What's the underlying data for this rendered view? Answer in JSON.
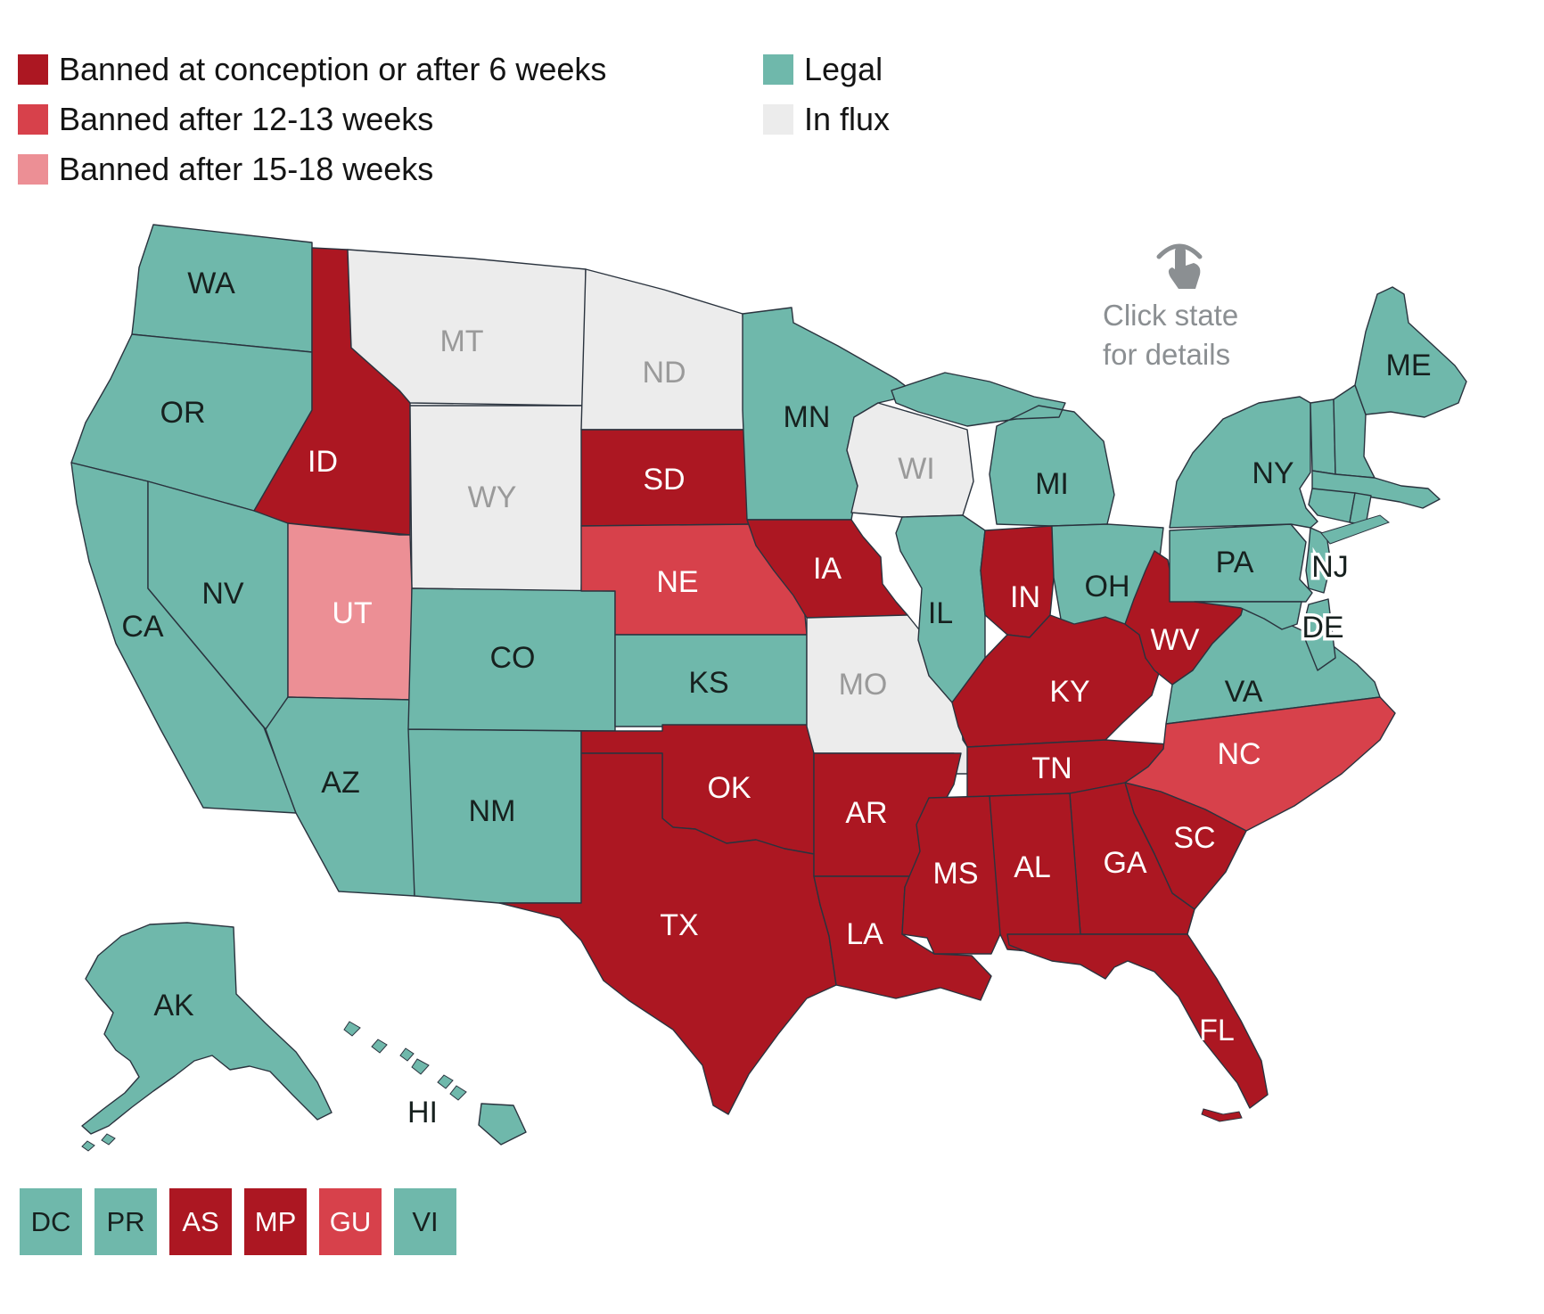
{
  "legend": {
    "items": [
      {
        "label": "Banned at conception or after 6 weeks",
        "status": "banned_6w",
        "column": "left"
      },
      {
        "label": "Banned after 12-13 weeks",
        "status": "banned_12_13w",
        "column": "left"
      },
      {
        "label": "Banned after 15-18 weeks",
        "status": "banned_15_18w",
        "column": "left"
      },
      {
        "label": "Legal",
        "status": "legal",
        "column": "right"
      },
      {
        "label": "In flux",
        "status": "influx",
        "column": "right"
      }
    ]
  },
  "colors": {
    "banned_6w": "#AC1722",
    "banned_12_13w": "#D7414B",
    "banned_15_18w": "#EC8F95",
    "legal": "#6FB8AB",
    "influx": "#ECECEC"
  },
  "label_colors": {
    "legal": "#17211F",
    "influx": "#9A9A9A",
    "banned_6w": "#FFFFFF",
    "banned_12_13w": "#FFFFFF",
    "banned_15_18w": "#FFFFFF"
  },
  "instruction": {
    "line1": "Click state",
    "line2": "for details"
  },
  "map": {
    "states": [
      {
        "abbr": "WA",
        "status": "legal",
        "labeled": true
      },
      {
        "abbr": "OR",
        "status": "legal",
        "labeled": true
      },
      {
        "abbr": "CA",
        "status": "legal",
        "labeled": true
      },
      {
        "abbr": "NV",
        "status": "legal",
        "labeled": true
      },
      {
        "abbr": "ID",
        "status": "banned_6w",
        "labeled": true
      },
      {
        "abbr": "MT",
        "status": "influx",
        "labeled": true
      },
      {
        "abbr": "WY",
        "status": "influx",
        "labeled": true
      },
      {
        "abbr": "UT",
        "status": "banned_15_18w",
        "labeled": true
      },
      {
        "abbr": "AZ",
        "status": "legal",
        "labeled": true
      },
      {
        "abbr": "NM",
        "status": "legal",
        "labeled": true
      },
      {
        "abbr": "CO",
        "status": "legal",
        "labeled": true
      },
      {
        "abbr": "ND",
        "status": "influx",
        "labeled": true
      },
      {
        "abbr": "SD",
        "status": "banned_6w",
        "labeled": true
      },
      {
        "abbr": "NE",
        "status": "banned_12_13w",
        "labeled": true
      },
      {
        "abbr": "KS",
        "status": "legal",
        "labeled": true
      },
      {
        "abbr": "OK",
        "status": "banned_6w",
        "labeled": true
      },
      {
        "abbr": "TX",
        "status": "banned_6w",
        "labeled": true
      },
      {
        "abbr": "MN",
        "status": "legal",
        "labeled": true
      },
      {
        "abbr": "IA",
        "status": "banned_6w",
        "labeled": true
      },
      {
        "abbr": "MO",
        "status": "influx",
        "labeled": true
      },
      {
        "abbr": "AR",
        "status": "banned_6w",
        "labeled": true
      },
      {
        "abbr": "LA",
        "status": "banned_6w",
        "labeled": true
      },
      {
        "abbr": "WI",
        "status": "influx",
        "labeled": true
      },
      {
        "abbr": "IL",
        "status": "legal",
        "labeled": true
      },
      {
        "abbr": "MI",
        "status": "legal",
        "labeled": true
      },
      {
        "abbr": "IN",
        "status": "banned_6w",
        "labeled": true
      },
      {
        "abbr": "OH",
        "status": "legal",
        "labeled": true
      },
      {
        "abbr": "KY",
        "status": "banned_6w",
        "labeled": true
      },
      {
        "abbr": "TN",
        "status": "banned_6w",
        "labeled": true
      },
      {
        "abbr": "WV",
        "status": "banned_6w",
        "labeled": true
      },
      {
        "abbr": "VA",
        "status": "legal",
        "labeled": true
      },
      {
        "abbr": "NC",
        "status": "banned_12_13w",
        "labeled": true
      },
      {
        "abbr": "SC",
        "status": "banned_6w",
        "labeled": true
      },
      {
        "abbr": "GA",
        "status": "banned_6w",
        "labeled": true
      },
      {
        "abbr": "AL",
        "status": "banned_6w",
        "labeled": true
      },
      {
        "abbr": "MS",
        "status": "banned_6w",
        "labeled": true
      },
      {
        "abbr": "FL",
        "status": "banned_6w",
        "labeled": true
      },
      {
        "abbr": "PA",
        "status": "legal",
        "labeled": true
      },
      {
        "abbr": "NY",
        "status": "legal",
        "labeled": true
      },
      {
        "abbr": "NJ",
        "status": "legal",
        "labeled": true,
        "halo": true
      },
      {
        "abbr": "DE",
        "status": "legal",
        "labeled": true,
        "halo": true
      },
      {
        "abbr": "MD",
        "status": "legal",
        "labeled": false
      },
      {
        "abbr": "VT",
        "status": "legal",
        "labeled": false
      },
      {
        "abbr": "NH",
        "status": "legal",
        "labeled": false
      },
      {
        "abbr": "MA",
        "status": "legal",
        "labeled": false
      },
      {
        "abbr": "CT",
        "status": "legal",
        "labeled": false
      },
      {
        "abbr": "RI",
        "status": "legal",
        "labeled": false
      },
      {
        "abbr": "ME",
        "status": "legal",
        "labeled": true
      },
      {
        "abbr": "AK",
        "status": "legal",
        "labeled": true
      },
      {
        "abbr": "HI",
        "status": "legal",
        "labeled": true
      }
    ]
  },
  "territories": [
    {
      "abbr": "DC",
      "status": "legal"
    },
    {
      "abbr": "PR",
      "status": "legal"
    },
    {
      "abbr": "AS",
      "status": "banned_6w"
    },
    {
      "abbr": "MP",
      "status": "banned_6w"
    },
    {
      "abbr": "GU",
      "status": "banned_12_13w"
    },
    {
      "abbr": "VI",
      "status": "legal"
    }
  ]
}
